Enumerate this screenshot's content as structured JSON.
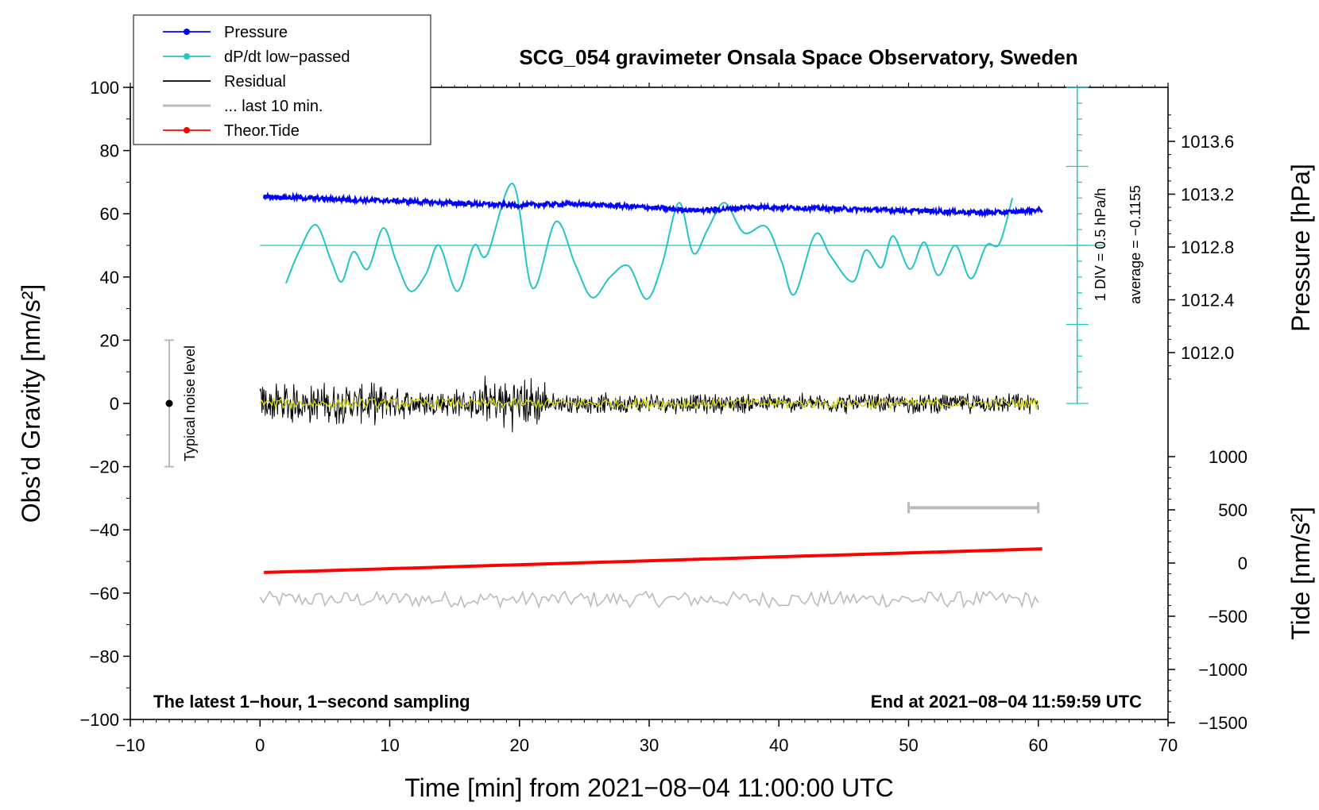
{
  "chart_data": {
    "type": "line",
    "title": "SCG_054 gravimeter Onsala Space Observatory, Sweden",
    "xlabel": "Time [min] from 2021−08−04 11:00:00 UTC",
    "ylabel_left": "Obs’d Gravity [nm/s²]",
    "ylabel_right_top": "Pressure [hPa]",
    "ylabel_right_bottom": "Tide [nm/s²]",
    "xlim": [
      -10,
      70
    ],
    "ylim": [
      -100,
      100
    ],
    "x_ticks": [
      -10,
      0,
      10,
      20,
      30,
      40,
      50,
      60,
      70
    ],
    "x_tick_labels": [
      "−10",
      "0",
      "10",
      "20",
      "30",
      "40",
      "50",
      "60",
      "70"
    ],
    "y_ticks": [
      -100,
      -80,
      -60,
      -40,
      -20,
      0,
      20,
      40,
      60,
      80,
      100
    ],
    "y_tick_labels": [
      "−100",
      "−80",
      "−60",
      "−40",
      "−20",
      "0",
      "20",
      "40",
      "60",
      "80",
      "100"
    ],
    "pressure_axis": {
      "ticks": [
        1012.0,
        1012.4,
        1012.8,
        1013.2,
        1013.6
      ],
      "tick_labels": [
        "1012.0",
        "1012.4",
        "1012.8",
        "1013.2",
        "1013.6"
      ]
    },
    "tide_axis": {
      "ticks": [
        -1500,
        -1000,
        -500,
        0,
        500,
        1000
      ],
      "tick_labels": [
        "−1500",
        "−1000",
        "−500",
        "0",
        "500",
        "1000"
      ]
    },
    "legend": {
      "position": "top-left",
      "entries": [
        {
          "label": "Pressure",
          "color": "#0000ff",
          "marker": true
        },
        {
          "label": "dP/dt low−passed",
          "color": "#22c4c4",
          "marker": true
        },
        {
          "label": "Residual",
          "color": "#000000",
          "marker": false
        },
        {
          "label": "... last 10 min.",
          "color": "#bbbbbb",
          "marker": false
        },
        {
          "label": "Theor.Tide",
          "color": "#ff0000",
          "marker": true
        }
      ]
    },
    "annotations": {
      "bottom_left": "The latest 1−hour, 1−second sampling",
      "bottom_right": "End at 2021−08−04 11:59:59 UTC",
      "noise_label": "Typical noise level",
      "scale_label": "1 DIV = 0.5 hPa/h",
      "average_label": "average = −0.1155"
    },
    "noise_bar": {
      "x": -7,
      "center": 0,
      "low": -20,
      "high": 20
    },
    "last10_bar": {
      "x_start": 50,
      "x_end": 60,
      "y": -33
    },
    "dpdt_zero_level": 50,
    "series": [
      {
        "name": "Pressure",
        "color": "#0000ff",
        "x": [
          0.3,
          2,
          4,
          6,
          8,
          10,
          12,
          14,
          16,
          18,
          20,
          22,
          24,
          26,
          28,
          30,
          32,
          34,
          36,
          38,
          40,
          42,
          44,
          46,
          48,
          50,
          52,
          54,
          56,
          58,
          60.3
        ],
        "y": [
          65.5,
          65.2,
          64.9,
          64.6,
          64.3,
          64.1,
          63.8,
          63.5,
          63.2,
          62.9,
          62.7,
          63.0,
          63.1,
          62.8,
          62.4,
          62.0,
          61.4,
          61.1,
          61.5,
          62.2,
          62.0,
          61.8,
          61.6,
          61.4,
          61.2,
          61.0,
          60.8,
          60.6,
          60.3,
          60.6,
          61.3
        ]
      },
      {
        "name": "dP/dt low-passed",
        "color": "#22c4c4",
        "x": [
          2,
          3,
          4.3,
          5.5,
          6.3,
          7.2,
          8.3,
          9.5,
          10.5,
          11.6,
          12.8,
          13.8,
          15.2,
          16.5,
          17.5,
          19.5,
          21,
          22.8,
          24.3,
          25.6,
          27,
          28.4,
          29.8,
          31,
          32.3,
          33.4,
          34.5,
          35.8,
          37.3,
          39,
          40.2,
          41.2,
          42.8,
          44,
          45.7,
          46.7,
          47.9,
          48.8,
          50.1,
          51.2,
          52.3,
          53.6,
          54.8,
          56,
          57,
          58
        ],
        "y": [
          38,
          48,
          56.5,
          45,
          38.5,
          48,
          42.5,
          55.5,
          45,
          35.5,
          41,
          50,
          35.5,
          50,
          47,
          69.5,
          36.5,
          57.5,
          44,
          33.5,
          40,
          43.5,
          33,
          44,
          63.5,
          47.5,
          55,
          63.5,
          54,
          56,
          45,
          34.5,
          53.5,
          46.5,
          38.5,
          48.5,
          43,
          53,
          42.5,
          51,
          40.5,
          50,
          39.5,
          50,
          50.5,
          65
        ]
      },
      {
        "name": "Residual",
        "color": "#000000",
        "x_range": [
          0,
          60
        ],
        "center": 0,
        "amplitude_by_segment": [
          {
            "x": [
              0,
              10
            ],
            "amp": 6
          },
          {
            "x": [
              10,
              17
            ],
            "amp": 4.5
          },
          {
            "x": [
              17,
              22
            ],
            "amp": 8
          },
          {
            "x": [
              22,
              60
            ],
            "amp": 3
          }
        ]
      },
      {
        "name": "Residual (smoothed)",
        "color": "#d4d400",
        "x_range": [
          0,
          60
        ],
        "center": 0,
        "amplitude": 1.5
      },
      {
        "name": "... last 10 min.",
        "color": "#bbbbbb",
        "x_range": [
          0,
          60
        ],
        "center": -62,
        "amplitude": 2.5
      },
      {
        "name": "Theor.Tide",
        "color": "#ff0000",
        "x": [
          0.3,
          60.3
        ],
        "y": [
          -53.5,
          -46
        ]
      }
    ]
  }
}
